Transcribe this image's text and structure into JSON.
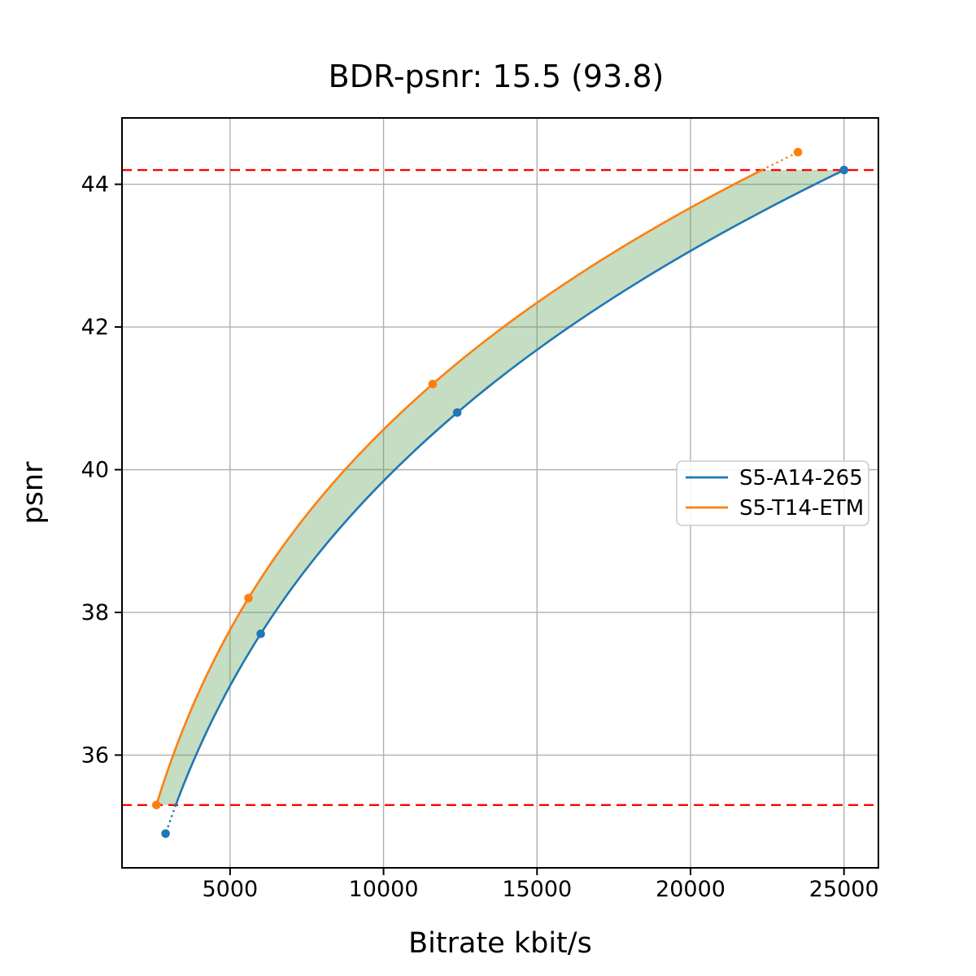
{
  "figure": {
    "title": "BDR-psnr: 15.5 (93.8)"
  },
  "chart_data": {
    "type": "line",
    "title": "BDR-psnr: 15.5 (93.8)",
    "xlabel": "Bitrate kbit/s",
    "ylabel": "psnr",
    "xlim": [
      1480,
      26120
    ],
    "ylim": [
      34.42,
      44.93
    ],
    "xticks": [
      5000,
      10000,
      15000,
      20000,
      25000
    ],
    "yticks": [
      36,
      38,
      40,
      42,
      44
    ],
    "grid": true,
    "grid_color": "#b0b0b0",
    "interpolation": "pchip of log10(bitrate) vs psnr, clipped to BD integration bounds",
    "series": [
      {
        "name": "S5-A14-265",
        "color": "#1f77b4",
        "marker": "circle",
        "x": [
          2900,
          6000,
          12400,
          25000
        ],
        "y": [
          34.9,
          37.7,
          40.8,
          44.2
        ]
      },
      {
        "name": "S5-T14-ETM",
        "color": "#ff7f0e",
        "marker": "circle",
        "x": [
          2600,
          5600,
          11600,
          23500
        ],
        "y": [
          35.3,
          38.2,
          41.2,
          44.45
        ]
      }
    ],
    "hlines": [
      {
        "name": "bd-upper-bound",
        "y": 44.2,
        "color": "#ff0000",
        "style": "dashed"
      },
      {
        "name": "bd-lower-bound",
        "y": 35.3,
        "color": "#ff0000",
        "style": "dashed"
      }
    ],
    "fill_between_curves": {
      "from_psnr": 35.3,
      "to_psnr": 44.2,
      "color": "#5a9e52",
      "opacity": 0.35
    },
    "legend": {
      "entries": [
        "S5-A14-265",
        "S5-T14-ETM"
      ],
      "position": "right-center"
    }
  }
}
